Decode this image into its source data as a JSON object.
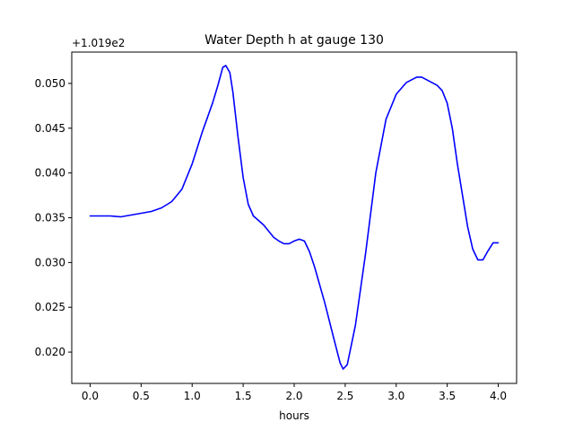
{
  "chart_data": {
    "type": "line",
    "title": "Water Depth h at gauge 130",
    "xlabel": "hours",
    "ylabel": "",
    "offset_label": "+1.019e2",
    "xlim": [
      -0.18,
      4.18
    ],
    "ylim": [
      0.0165,
      0.0535
    ],
    "xticks": [
      0.0,
      0.5,
      1.0,
      1.5,
      2.0,
      2.5,
      3.0,
      3.5,
      4.0
    ],
    "xtick_labels": [
      "0.0",
      "0.5",
      "1.0",
      "1.5",
      "2.0",
      "2.5",
      "3.0",
      "3.5",
      "4.0"
    ],
    "yticks": [
      0.02,
      0.025,
      0.03,
      0.035,
      0.04,
      0.045,
      0.05
    ],
    "ytick_labels": [
      "0.020",
      "0.025",
      "0.030",
      "0.035",
      "0.040",
      "0.045",
      "0.050"
    ],
    "grid": false,
    "legend": "none",
    "line_color": "#0000ff",
    "series": [
      {
        "x": [
          0.0,
          0.1,
          0.2,
          0.3,
          0.4,
          0.5,
          0.6,
          0.7,
          0.8,
          0.9,
          1.0,
          1.05,
          1.1,
          1.15,
          1.2,
          1.25,
          1.3,
          1.33,
          1.37,
          1.4,
          1.45,
          1.5,
          1.55,
          1.6,
          1.65,
          1.7,
          1.75,
          1.8,
          1.85,
          1.9,
          1.95,
          2.0,
          2.05,
          2.1,
          2.15,
          2.2,
          2.3,
          2.4,
          2.45,
          2.48,
          2.52,
          2.6,
          2.7,
          2.8,
          2.9,
          3.0,
          3.1,
          3.2,
          3.25,
          3.3,
          3.4,
          3.45,
          3.5,
          3.55,
          3.6,
          3.7,
          3.75,
          3.8,
          3.85,
          3.9,
          3.95,
          4.0
        ],
        "values": [
          0.0352,
          0.0352,
          0.0352,
          0.0351,
          0.0353,
          0.0355,
          0.0357,
          0.0361,
          0.0368,
          0.0382,
          0.041,
          0.0428,
          0.0446,
          0.0462,
          0.0478,
          0.0497,
          0.0518,
          0.052,
          0.0512,
          0.049,
          0.044,
          0.0395,
          0.0365,
          0.0352,
          0.0347,
          0.0342,
          0.0335,
          0.0328,
          0.0324,
          0.0321,
          0.0321,
          0.0324,
          0.0326,
          0.0324,
          0.0312,
          0.0295,
          0.0255,
          0.021,
          0.0188,
          0.0181,
          0.0186,
          0.023,
          0.031,
          0.04,
          0.046,
          0.0488,
          0.0501,
          0.0507,
          0.0507,
          0.0504,
          0.0498,
          0.0492,
          0.0478,
          0.045,
          0.041,
          0.034,
          0.0315,
          0.0303,
          0.0303,
          0.0313,
          0.0322,
          0.0322
        ]
      }
    ]
  }
}
